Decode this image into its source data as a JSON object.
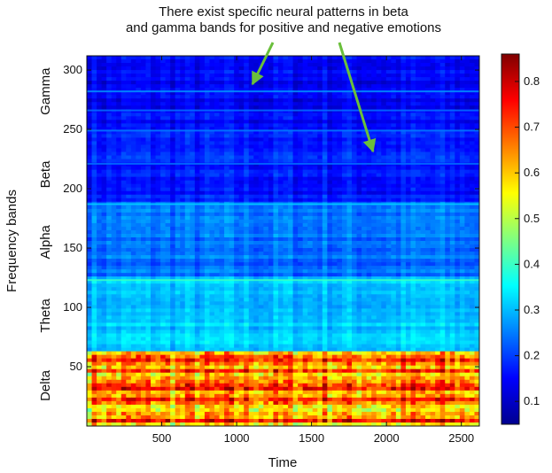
{
  "chart_data": {
    "type": "heatmap",
    "annotation": {
      "line1": "There exist specific neural patterns in beta",
      "line2": "and gamma bands for positive and negative emotions",
      "arrow_color": "#6abf3b"
    },
    "xlabel": "Time",
    "ylabel": "Frequency bands",
    "xlim": [
      0,
      2620
    ],
    "ylim": [
      0,
      312
    ],
    "x_ticks": [
      500,
      1000,
      1500,
      2000,
      2500
    ],
    "y_ticks": [
      50,
      100,
      150,
      200,
      250,
      300
    ],
    "band_labels": [
      {
        "name": "Delta",
        "center": 34
      },
      {
        "name": "Theta",
        "center": 93
      },
      {
        "name": "Alpha",
        "center": 155
      },
      {
        "name": "Beta",
        "center": 212
      },
      {
        "name": "Gamma",
        "center": 282
      }
    ],
    "colorbar": {
      "colormap": "jet",
      "range": [
        0.05,
        0.86
      ],
      "ticks": [
        0.1,
        0.2,
        0.3,
        0.4,
        0.5,
        0.6,
        0.7,
        0.8
      ]
    },
    "band_levels": [
      {
        "from": 0,
        "to": 62,
        "level": 0.66
      },
      {
        "from": 62,
        "to": 125,
        "level": 0.31
      },
      {
        "from": 125,
        "to": 188,
        "level": 0.24
      },
      {
        "from": 188,
        "to": 250,
        "level": 0.17
      },
      {
        "from": 250,
        "to": 312,
        "level": 0.15
      }
    ],
    "highlight_rows": [
      {
        "y": 187,
        "level": 0.32
      },
      {
        "y": 249,
        "level": 0.25
      },
      {
        "y": 282,
        "level": 0.27
      },
      {
        "y": 266,
        "level": 0.24
      },
      {
        "y": 221,
        "level": 0.24
      },
      {
        "y": 123,
        "level": 0.4
      }
    ]
  }
}
